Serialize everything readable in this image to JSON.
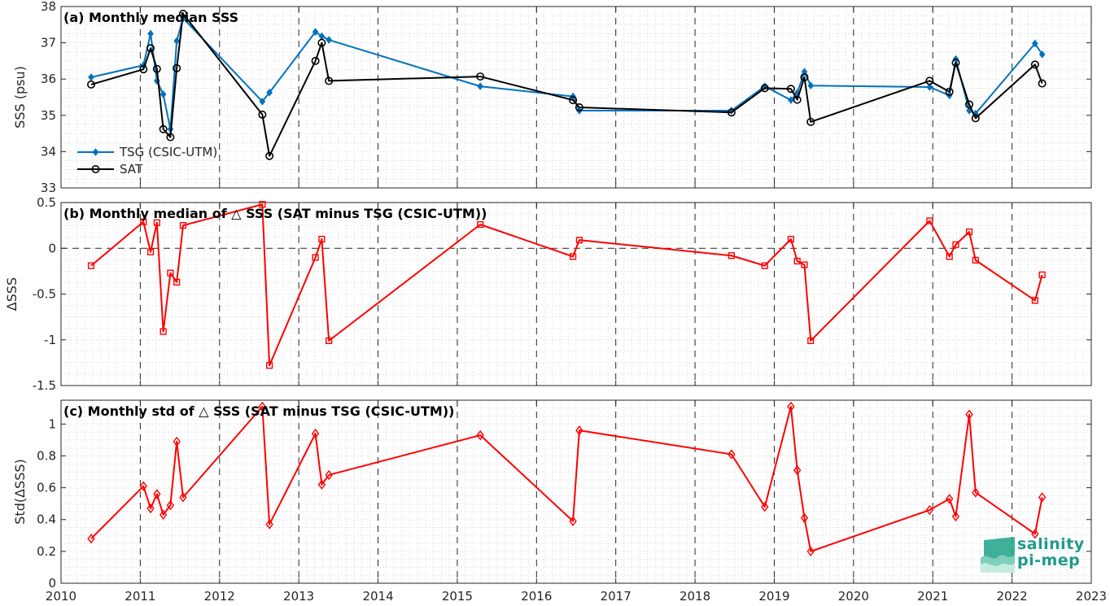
{
  "chart_data": [
    {
      "type": "line",
      "title": "(a) Monthly median SSS",
      "xlabel": "",
      "ylabel": "SSS (psu)",
      "xlim": [
        2010,
        2023
      ],
      "ylim": [
        33,
        38
      ],
      "yticks": [
        33,
        34,
        35,
        36,
        37,
        38
      ],
      "legend": "lower-left",
      "series": [
        {
          "name": "TSG (CSIC-UTM)",
          "color": "#0072BD",
          "marker": "diamond-filled",
          "x": [
            2010.38,
            2011.04,
            2011.13,
            2011.21,
            2011.29,
            2011.38,
            2011.46,
            2011.54,
            2012.54,
            2012.63,
            2013.21,
            2013.29,
            2013.38,
            2015.29,
            2016.46,
            2016.54,
            2018.46,
            2018.88,
            2019.21,
            2019.29,
            2019.38,
            2019.46,
            2020.96,
            2021.21,
            2021.29,
            2021.46,
            2021.54,
            2022.29,
            2022.38
          ],
          "y": [
            36.05,
            36.38,
            37.25,
            35.95,
            35.58,
            34.62,
            37.05,
            37.68,
            35.38,
            35.63,
            37.3,
            37.18,
            37.08,
            35.8,
            35.52,
            35.13,
            35.13,
            35.8,
            35.42,
            35.62,
            36.2,
            35.82,
            35.78,
            35.55,
            36.55,
            35.13,
            35.05,
            36.98,
            36.68
          ]
        },
        {
          "name": "SAT",
          "color": "#000000",
          "marker": "circle-open",
          "x": [
            2010.38,
            2011.04,
            2011.13,
            2011.21,
            2011.29,
            2011.38,
            2011.46,
            2011.54,
            2012.54,
            2012.63,
            2013.21,
            2013.29,
            2013.38,
            2015.29,
            2016.46,
            2016.54,
            2018.46,
            2018.88,
            2019.21,
            2019.29,
            2019.38,
            2019.46,
            2020.96,
            2021.21,
            2021.29,
            2021.46,
            2021.54,
            2022.29,
            2022.38
          ],
          "y": [
            35.85,
            36.27,
            36.85,
            36.28,
            34.62,
            34.4,
            36.3,
            37.8,
            35.02,
            33.88,
            36.5,
            37.0,
            35.95,
            36.07,
            35.42,
            35.22,
            35.08,
            35.75,
            35.73,
            35.43,
            36.05,
            34.82,
            35.95,
            35.65,
            36.45,
            35.3,
            34.92,
            36.4,
            35.88
          ]
        }
      ]
    },
    {
      "type": "line",
      "title": "(b) Monthly median of △ SSS (SAT minus TSG (CSIC-UTM))",
      "xlabel": "",
      "ylabel": "ΔSSS",
      "xlim": [
        2010,
        2023
      ],
      "ylim": [
        -1.5,
        0.5
      ],
      "yticks": [
        -1.5,
        -1,
        -0.5,
        0,
        0.5
      ],
      "ytick_labels": [
        "-1.5",
        "-1",
        "-0.5",
        "0",
        "0.5"
      ],
      "zero_line": "dashed",
      "series": [
        {
          "color": "#FF0000",
          "marker": "square-open",
          "x": [
            2010.38,
            2011.04,
            2011.13,
            2011.21,
            2011.29,
            2011.38,
            2011.46,
            2011.54,
            2012.54,
            2012.63,
            2013.21,
            2013.29,
            2013.38,
            2015.29,
            2016.46,
            2016.54,
            2018.46,
            2018.88,
            2019.21,
            2019.29,
            2019.38,
            2019.46,
            2020.96,
            2021.21,
            2021.29,
            2021.46,
            2021.54,
            2022.29,
            2022.38
          ],
          "y": [
            -0.19,
            0.29,
            -0.04,
            0.28,
            -0.91,
            -0.27,
            -0.37,
            0.25,
            0.48,
            -1.28,
            -0.1,
            0.1,
            -1.01,
            0.26,
            -0.09,
            0.09,
            -0.08,
            -0.19,
            0.1,
            -0.14,
            -0.18,
            -1.01,
            0.3,
            -0.09,
            0.04,
            0.18,
            -0.13,
            -0.57,
            -0.29
          ]
        }
      ]
    },
    {
      "type": "line",
      "title": "(c) Monthly std of △ SSS (SAT minus TSG (CSIC-UTM))",
      "xlabel": "",
      "ylabel": "Std(ΔSSS)",
      "xlim": [
        2010,
        2023
      ],
      "ylim": [
        0,
        1.15
      ],
      "yticks": [
        0,
        0.2,
        0.4,
        0.6,
        0.8,
        1
      ],
      "ytick_labels": [
        "0",
        "0.2",
        "0.4",
        "0.6",
        "0.8",
        "1"
      ],
      "xticks": [
        2010,
        2011,
        2012,
        2013,
        2014,
        2015,
        2016,
        2017,
        2018,
        2019,
        2020,
        2021,
        2022,
        2023
      ],
      "series": [
        {
          "color": "#FF0000",
          "marker": "diamond-open",
          "x": [
            2010.38,
            2011.04,
            2011.13,
            2011.21,
            2011.29,
            2011.38,
            2011.46,
            2011.54,
            2012.54,
            2012.63,
            2013.21,
            2013.29,
            2013.38,
            2015.29,
            2016.46,
            2016.54,
            2018.46,
            2018.88,
            2019.21,
            2019.29,
            2019.38,
            2019.46,
            2020.96,
            2021.21,
            2021.29,
            2021.46,
            2021.54,
            2022.29,
            2022.38
          ],
          "y": [
            0.28,
            0.61,
            0.47,
            0.56,
            0.43,
            0.49,
            0.89,
            0.54,
            1.11,
            0.37,
            0.94,
            0.62,
            0.68,
            0.93,
            0.39,
            0.96,
            0.81,
            0.48,
            1.11,
            0.71,
            0.41,
            0.2,
            0.46,
            0.53,
            0.42,
            1.06,
            0.57,
            0.31,
            0.54
          ]
        }
      ]
    }
  ],
  "logo": {
    "line1": "salinity",
    "line2": "pi-mep",
    "color": "#1f9a8a"
  }
}
